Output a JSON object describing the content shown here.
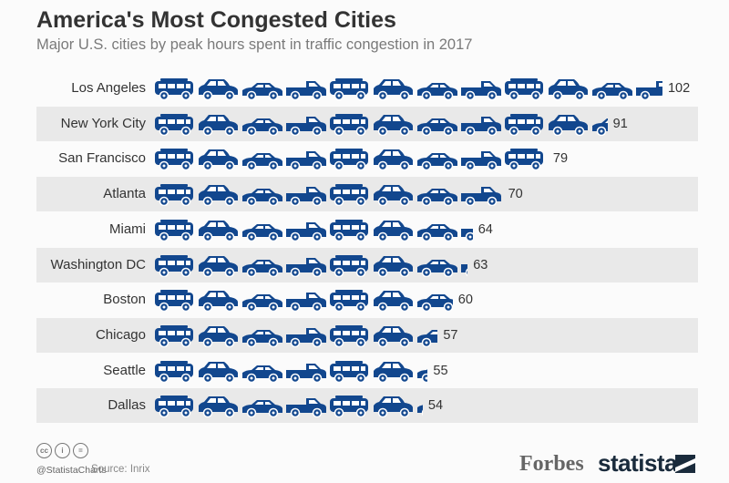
{
  "chart_data": {
    "type": "bar",
    "style": "pictogram",
    "title": "America's Most Congested Cities",
    "subtitle": "Major U.S. cities by peak hours spent in traffic congestion in 2017",
    "categories": [
      "Los Angeles",
      "New York City",
      "San Francisco",
      "Atlanta",
      "Miami",
      "Washington DC",
      "Boston",
      "Chicago",
      "Seattle",
      "Dallas"
    ],
    "values": [
      102,
      91,
      79,
      70,
      64,
      63,
      60,
      57,
      55,
      54
    ],
    "unit": "peak hours",
    "orientation": "horizontal",
    "icon": "car-icon",
    "bar_color": "#12478e",
    "row_stripe_color": "#e9e9e9"
  },
  "footer": {
    "handle": "@StatistaCharts",
    "source": "Source: Inrix",
    "logo_forbes": "Forbes",
    "logo_statista": "statista"
  }
}
